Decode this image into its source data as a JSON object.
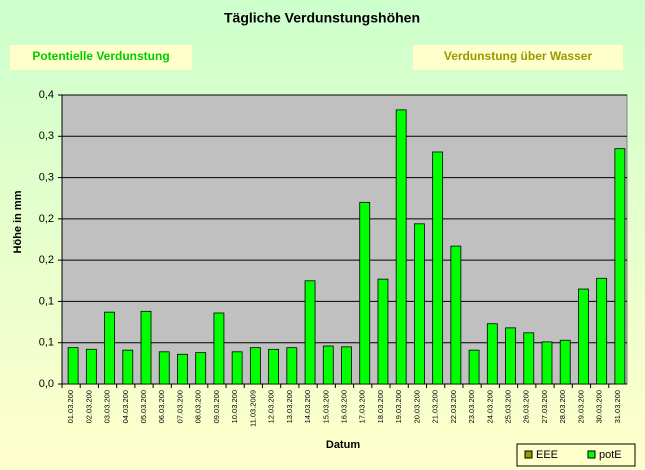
{
  "chart_data": {
    "type": "bar",
    "title": "Tägliche Verdunstungshöhen",
    "annotations": [
      {
        "text": "Potentielle Verdunstung",
        "color": "#00cc00"
      },
      {
        "text": "Verdunstung über Wasser",
        "color": "#999900"
      }
    ],
    "x_label": "Datum",
    "y_label": "Höhe in mm",
    "categories": [
      "01.03.200",
      "02.03.200",
      "03.03.200",
      "04.03.200",
      "05.03.200",
      "06.03.200",
      "07.03.200",
      "08.03.200",
      "09.03.200",
      "10.03.200",
      "11.03.2009",
      "12.03.200",
      "13.03.200",
      "14.03.200",
      "15.03.200",
      "16.03.200",
      "17.03.200",
      "18.03.200",
      "19.03.200",
      "20.03.200",
      "21.03.200",
      "22.03.200",
      "23.03.200",
      "24.03.200",
      "25.03.200",
      "26.03.200",
      "27.03.200",
      "28.03.200",
      "29.03.200",
      "30.03.200",
      "31.03.200"
    ],
    "series": [
      {
        "name": "EEE",
        "color": "#999900",
        "values": [
          null,
          null,
          null,
          null,
          null,
          null,
          null,
          null,
          null,
          null,
          null,
          null,
          null,
          null,
          null,
          null,
          null,
          null,
          null,
          null,
          null,
          null,
          null,
          null,
          null,
          null,
          null,
          null,
          null,
          null,
          null
        ]
      },
      {
        "name": "potE",
        "color": "#00ff00",
        "values": [
          0.044,
          0.042,
          0.087,
          0.041,
          0.088,
          0.039,
          0.036,
          0.038,
          0.086,
          0.039,
          0.044,
          0.042,
          0.044,
          0.125,
          0.046,
          0.045,
          0.22,
          0.127,
          0.332,
          0.194,
          0.281,
          0.167,
          0.041,
          0.073,
          0.068,
          0.062,
          0.051,
          0.053,
          0.115,
          0.128,
          0.285
        ]
      }
    ],
    "ylim": [
      0,
      0.35
    ],
    "yticks": [
      {
        "value": 0,
        "label": "0,0"
      },
      {
        "value": 0.05,
        "label": "0,1"
      },
      {
        "value": 0.1,
        "label": "0,1"
      },
      {
        "value": 0.15,
        "label": "0,2"
      },
      {
        "value": 0.2,
        "label": "0,2"
      },
      {
        "value": 0.25,
        "label": "0,3"
      },
      {
        "value": 0.3,
        "label": "0,3"
      },
      {
        "value": 0.35,
        "label": "0,4"
      }
    ],
    "grid": true,
    "plot_background": "#c0c0c0",
    "legend": "bottom-right"
  }
}
